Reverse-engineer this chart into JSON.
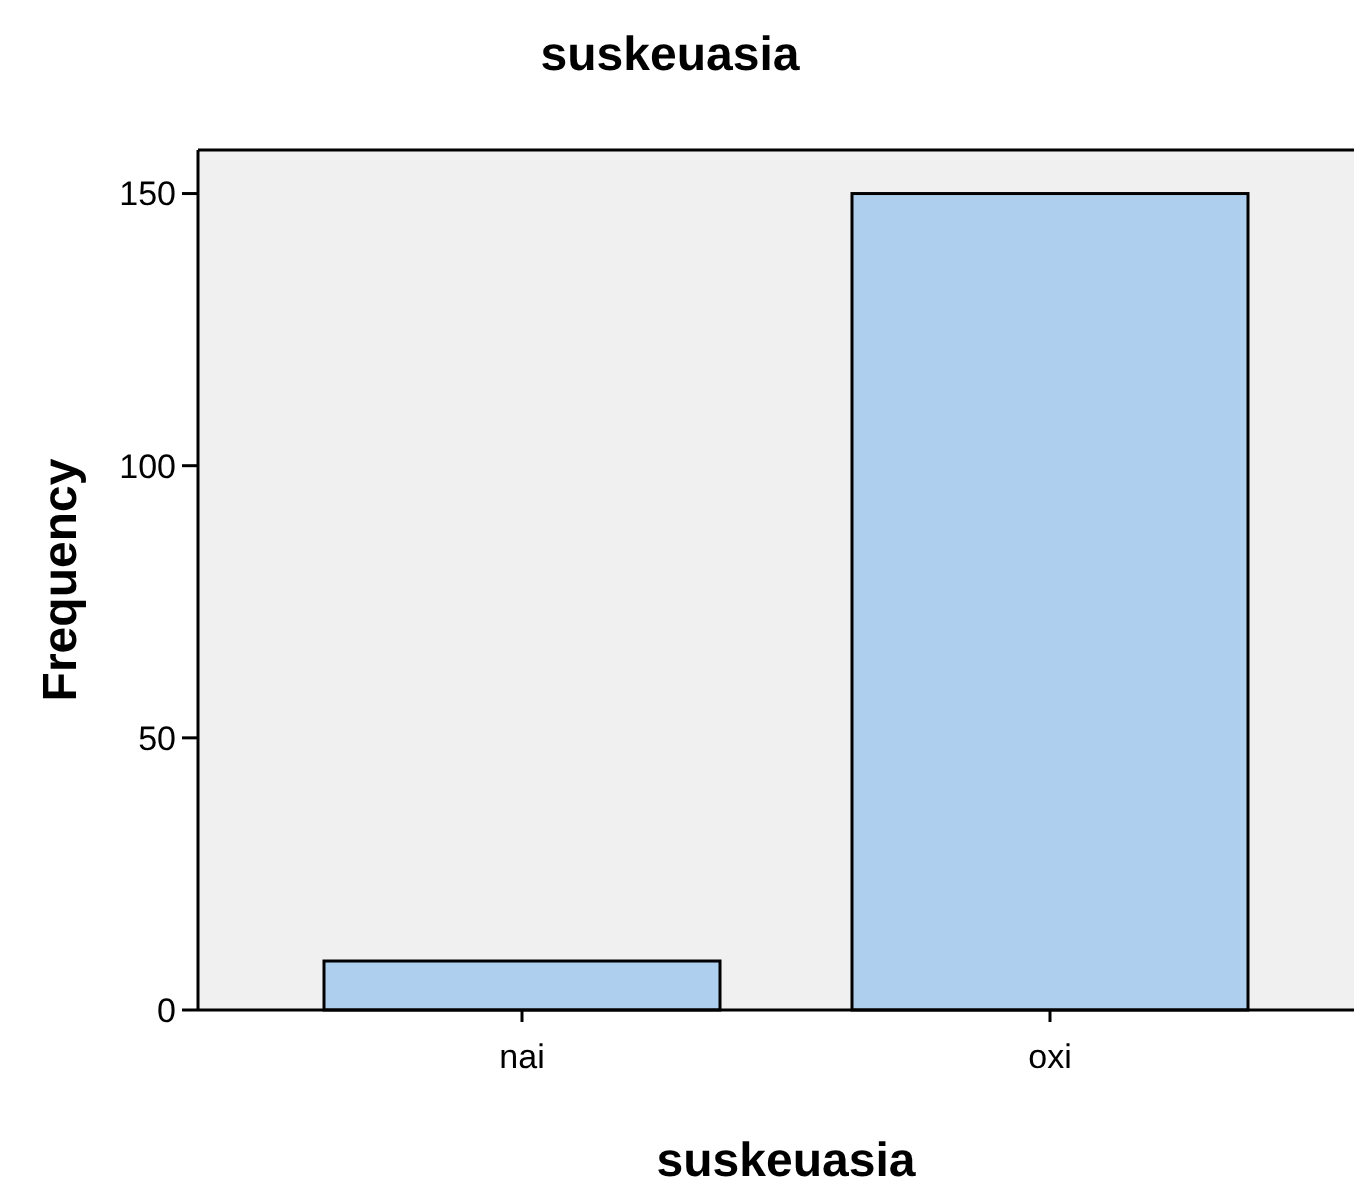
{
  "chart_data": {
    "type": "bar",
    "title": "suskeuasia",
    "xlabel": "suskeuasia",
    "ylabel": "Frequency",
    "categories": [
      "nai",
      "oxi"
    ],
    "values": [
      9,
      150
    ],
    "color": "#aed0ee",
    "ylim": [
      0,
      158
    ],
    "yticks": [
      0,
      50,
      100,
      150
    ],
    "grid": false
  }
}
